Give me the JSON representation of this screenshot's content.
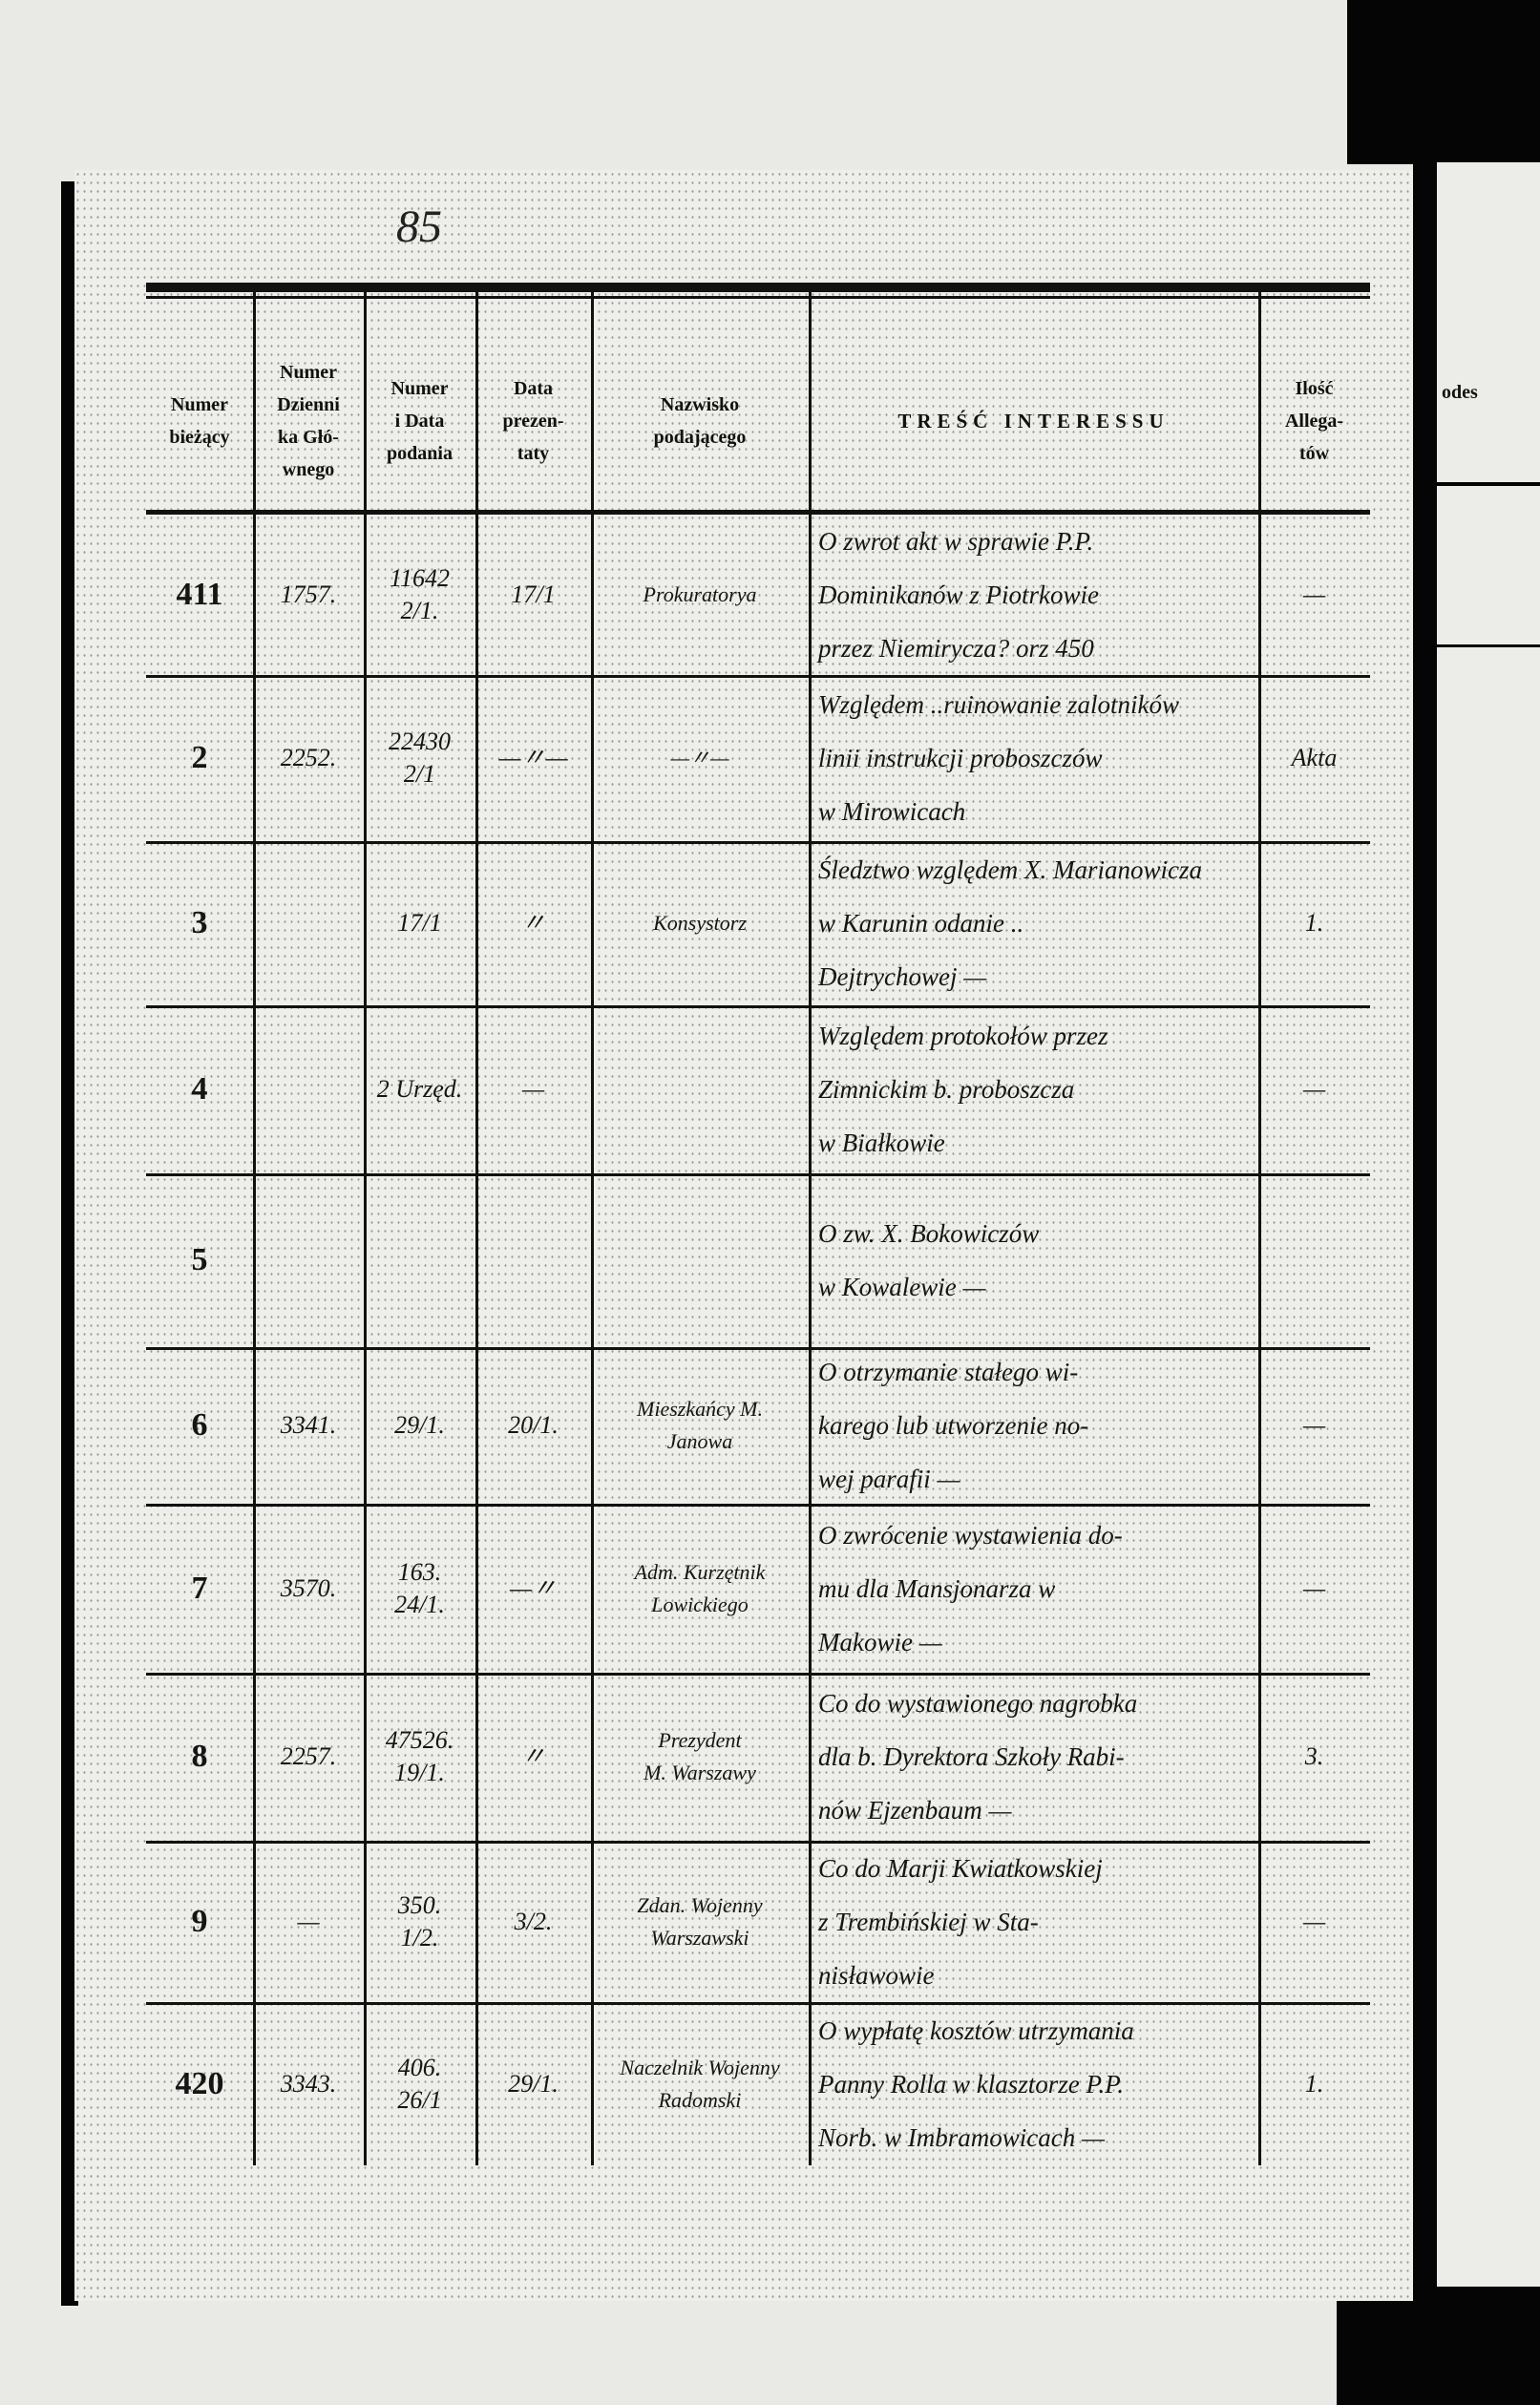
{
  "folio": "85",
  "headers": [
    "Numer\nbieżący",
    "Numer\nDzienni\nka Głó-\nwnego",
    "Numer\ni Data\npodania",
    "Data\nprezen-\ntaty",
    "Nazwisko\npodającego",
    "TREŚĆ  INTERESSU",
    "Ilość\nAllega-\ntów"
  ],
  "right_page_header": "odes",
  "rows": [
    {
      "nr": "411",
      "dziennik": "1757.",
      "numer_data": "11642\n2/1.",
      "data_prez": "17/1",
      "nazwisko": "Prokuratorya",
      "tresc": "O zwrot akt w sprawie P.P.\nDominikanów z Piotrkowie\nprzez Niemirycza? orz 450",
      "allegaty": "—"
    },
    {
      "nr": "2",
      "dziennik": "2252.",
      "numer_data": "22430\n2/1",
      "data_prez": "—〃—",
      "nazwisko": "—〃—",
      "tresc": "Względem ..ruinowanie zalotników\nlinii instrukcji proboszczów\nw Mirowicach",
      "allegaty": "Akta"
    },
    {
      "nr": "3",
      "dziennik": "",
      "numer_data": "17/1",
      "data_prez": "〃",
      "nazwisko": "Konsystorz",
      "tresc": "Śledztwo względem X. Marianowicza\nw Karunin odanie ..\nDejtrychowej —",
      "allegaty": "1."
    },
    {
      "nr": "4",
      "dziennik": "",
      "numer_data": "2 Urzęd.",
      "data_prez": "—",
      "nazwisko": "",
      "tresc": "Względem protokołów przez\nZimnickim b. proboszcza\nw Białkowie",
      "allegaty": "—"
    },
    {
      "nr": "5",
      "dziennik": "",
      "numer_data": "",
      "data_prez": "",
      "nazwisko": "",
      "tresc": "O zw. X. Bokowiczów\nw Kowalewie —",
      "allegaty": ""
    },
    {
      "nr": "6",
      "dziennik": "3341.",
      "numer_data": "29/1.",
      "data_prez": "20/1.",
      "nazwisko": "Mieszkańcy M.\nJanowa",
      "tresc": "O otrzymanie stałego wi-\nkarego lub utworzenie no-\nwej parafii —",
      "allegaty": "—"
    },
    {
      "nr": "7",
      "dziennik": "3570.",
      "numer_data": "163.\n24/1.",
      "data_prez": "—〃",
      "nazwisko": "Adm. Kurzętnik\nLowickiego",
      "tresc": "O zwrócenie wystawienia do-\nmu dla Mansjonarza w\nMakowie —",
      "allegaty": "—"
    },
    {
      "nr": "8",
      "dziennik": "2257.",
      "numer_data": "47526.\n19/1.",
      "data_prez": "〃",
      "nazwisko": "Prezydent\nM. Warszawy",
      "tresc": "Co do wystawionego nagrobka\ndla b. Dyrektora Szkoły Rabi-\nnów Ejzenbaum —",
      "allegaty": "3."
    },
    {
      "nr": "9",
      "dziennik": "—",
      "numer_data": "350.\n1/2.",
      "data_prez": "3/2.",
      "nazwisko": "Zdan. Wojenny\nWarszawski",
      "tresc": "Co do Marji Kwiatkowskiej\nz Trembińskiej w Sta-\nnisławowie",
      "allegaty": "—"
    },
    {
      "nr": "420",
      "dziennik": "3343.",
      "numer_data": "406.\n26/1",
      "data_prez": "29/1.",
      "nazwisko": "Naczelnik Wojenny\nRadomski",
      "tresc": "O wypłatę kosztów utrzymania\nPanny Rolla w klasztorze P.P.\nNorb. w Imbramowicach —",
      "allegaty": "1."
    }
  ],
  "colors": {
    "ink": "#111111",
    "paper": "#eeeeea",
    "background": "#050505"
  }
}
